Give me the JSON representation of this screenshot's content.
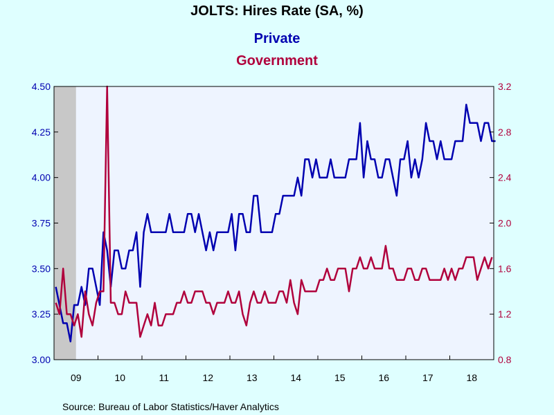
{
  "chart_data": {
    "type": "line",
    "title": "JOLTS: Hires Rate (SA, %)",
    "source": "Source:  Bureau of Labor Statistics/Haver Analytics",
    "x_start": "2009-01",
    "x_end": "2018-12",
    "x_ticks": [
      "09",
      "10",
      "11",
      "12",
      "13",
      "14",
      "15",
      "16",
      "17",
      "18"
    ],
    "recession_shading": {
      "start": "2009-01",
      "end": "2009-06",
      "color": "#c8c8c8"
    },
    "grid": false,
    "y_left": {
      "ylim": [
        3.0,
        4.5
      ],
      "ticks": [
        "3.00",
        "3.25",
        "3.50",
        "3.75",
        "4.00",
        "4.25",
        "4.50"
      ],
      "color": "#0000b0"
    },
    "y_right": {
      "ylim": [
        0.8,
        3.2
      ],
      "ticks": [
        "0.8",
        "1.2",
        "1.6",
        "2.0",
        "2.4",
        "2.8",
        "3.2"
      ],
      "color": "#b0003c"
    },
    "series": [
      {
        "name": "Private",
        "axis": "left",
        "color": "#0000b0",
        "values": [
          3.4,
          3.3,
          3.2,
          3.2,
          3.1,
          3.3,
          3.3,
          3.4,
          3.3,
          3.5,
          3.5,
          3.4,
          3.3,
          3.7,
          3.6,
          3.4,
          3.6,
          3.6,
          3.5,
          3.5,
          3.6,
          3.6,
          3.7,
          3.4,
          3.7,
          3.8,
          3.7,
          3.7,
          3.7,
          3.7,
          3.7,
          3.8,
          3.7,
          3.7,
          3.7,
          3.7,
          3.8,
          3.8,
          3.7,
          3.8,
          3.7,
          3.6,
          3.7,
          3.6,
          3.7,
          3.7,
          3.7,
          3.7,
          3.8,
          3.6,
          3.8,
          3.8,
          3.7,
          3.7,
          3.9,
          3.9,
          3.7,
          3.7,
          3.7,
          3.7,
          3.8,
          3.8,
          3.9,
          3.9,
          3.9,
          3.9,
          4.0,
          3.9,
          4.1,
          4.1,
          4.0,
          4.1,
          4.0,
          4.0,
          4.0,
          4.1,
          4.0,
          4.0,
          4.0,
          4.0,
          4.1,
          4.1,
          4.1,
          4.3,
          4.0,
          4.2,
          4.1,
          4.1,
          4.0,
          4.0,
          4.1,
          4.1,
          4.0,
          3.9,
          4.1,
          4.1,
          4.2,
          4.0,
          4.1,
          4.0,
          4.1,
          4.3,
          4.2,
          4.2,
          4.1,
          4.2,
          4.1,
          4.1,
          4.1,
          4.2,
          4.2,
          4.2,
          4.4,
          4.3,
          4.3,
          4.3,
          4.2,
          4.3,
          4.3,
          4.2,
          4.2
        ]
      },
      {
        "name": "Government",
        "axis": "right",
        "color": "#b0003c",
        "values": [
          1.3,
          1.2,
          1.6,
          1.2,
          1.2,
          1.1,
          1.2,
          1.0,
          1.4,
          1.2,
          1.1,
          1.3,
          1.4,
          1.4,
          3.2,
          1.3,
          1.3,
          1.2,
          1.2,
          1.4,
          1.3,
          1.3,
          1.3,
          1.0,
          1.1,
          1.2,
          1.1,
          1.3,
          1.1,
          1.1,
          1.2,
          1.2,
          1.2,
          1.3,
          1.3,
          1.4,
          1.3,
          1.3,
          1.4,
          1.4,
          1.4,
          1.3,
          1.3,
          1.2,
          1.3,
          1.3,
          1.3,
          1.4,
          1.3,
          1.3,
          1.4,
          1.2,
          1.1,
          1.3,
          1.4,
          1.3,
          1.3,
          1.4,
          1.3,
          1.3,
          1.3,
          1.4,
          1.4,
          1.3,
          1.5,
          1.3,
          1.2,
          1.5,
          1.4,
          1.4,
          1.4,
          1.4,
          1.5,
          1.5,
          1.6,
          1.5,
          1.5,
          1.6,
          1.6,
          1.6,
          1.4,
          1.6,
          1.6,
          1.7,
          1.6,
          1.6,
          1.7,
          1.6,
          1.6,
          1.6,
          1.8,
          1.6,
          1.6,
          1.5,
          1.5,
          1.5,
          1.6,
          1.6,
          1.5,
          1.5,
          1.6,
          1.6,
          1.5,
          1.5,
          1.5,
          1.5,
          1.6,
          1.5,
          1.6,
          1.5,
          1.6,
          1.6,
          1.7,
          1.7,
          1.7,
          1.5,
          1.6,
          1.7,
          1.6,
          1.7
        ]
      }
    ]
  }
}
